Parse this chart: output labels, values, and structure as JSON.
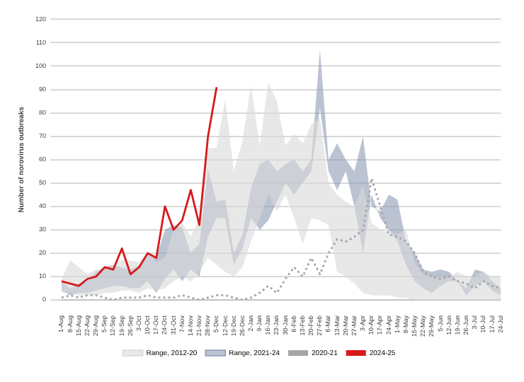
{
  "chart_data": {
    "type": "line",
    "ylabel": "Number of norovirus outbreaks",
    "categories": [
      "1-Aug",
      "8-Aug",
      "15-Aug",
      "22-Aug",
      "29-Aug",
      "5-Sep",
      "12-Sep",
      "19-Sep",
      "26-Sep",
      "3-Oct",
      "10-Oct",
      "17-Oct",
      "24-Oct",
      "31-Oct",
      "7-Nov",
      "14-Nov",
      "21-Nov",
      "28-Nov",
      "5-Dec",
      "12-Dec",
      "19-Dec",
      "26-Dec",
      "2-Jan",
      "9-Jan",
      "16-Jan",
      "23-Jan",
      "30-Jan",
      "6-Feb",
      "13-Feb",
      "20-Feb",
      "27-Feb",
      "6-Mar",
      "13-Mar",
      "20-Mar",
      "27-Mar",
      "3-Apr",
      "10-Apr",
      "17-Apr",
      "24-Apr",
      "1-May",
      "8-May",
      "15-May",
      "22-May",
      "29-May",
      "5-Jun",
      "12-Jun",
      "19-Jun",
      "26-Jun",
      "3-Jul",
      "10-Jul",
      "17-Jul",
      "24-Jul"
    ],
    "series": [
      {
        "name": "Range, 2012-20",
        "type": "line",
        "color": "#d9d9d9",
        "values": [
          null,
          null,
          null,
          null,
          null,
          null,
          null,
          null,
          null,
          null,
          null,
          null,
          null,
          null,
          null,
          null,
          null,
          null,
          null,
          null,
          null,
          null,
          null,
          null,
          null,
          null,
          null,
          null,
          null,
          null,
          null,
          null,
          null,
          null,
          null,
          null,
          null,
          null,
          null,
          null,
          null,
          null,
          null,
          null,
          null,
          null,
          null,
          null,
          null,
          null,
          null,
          null
        ],
        "lower": [
          3,
          3,
          2,
          2,
          2,
          3,
          3,
          4,
          4,
          3,
          5,
          4,
          5,
          8,
          10,
          8,
          12,
          18,
          15,
          12,
          10,
          14,
          25,
          35,
          45,
          38,
          45,
          35,
          24,
          35,
          34,
          32,
          12,
          10,
          7,
          3,
          2,
          2,
          2,
          1,
          1,
          0,
          0,
          0,
          0,
          0,
          0,
          0,
          0,
          0,
          0,
          0
        ],
        "upper": [
          9,
          17,
          14,
          11,
          13,
          13,
          15,
          17,
          17,
          16,
          21,
          16,
          18,
          30,
          33,
          27,
          35,
          65,
          65,
          86,
          55,
          68,
          92,
          66,
          93,
          85,
          66,
          71,
          67,
          75,
          78,
          50,
          45,
          42,
          40,
          49,
          33,
          30,
          29,
          28,
          30,
          16,
          11,
          10,
          10,
          10,
          12,
          10,
          10,
          12,
          10,
          10
        ]
      },
      {
        "name": "Range, 2021-24",
        "type": "line",
        "color": "#8e9bb5",
        "values": [
          null,
          null,
          null,
          null,
          null,
          null,
          null,
          null,
          null,
          null,
          null,
          null,
          null,
          null,
          null,
          null,
          null,
          null,
          null,
          null,
          null,
          null,
          null,
          null,
          null,
          null,
          null,
          null,
          null,
          null,
          null,
          null,
          null,
          null,
          null,
          null,
          null,
          null,
          null,
          null,
          null,
          null,
          null,
          null,
          null,
          null,
          null,
          null,
          null,
          null,
          null,
          null
        ],
        "lower": [
          4,
          2,
          3,
          3,
          4,
          5,
          6,
          6,
          5,
          5,
          8,
          3,
          9,
          13,
          8,
          13,
          10,
          27,
          35,
          35,
          15,
          22,
          35,
          30,
          34,
          42,
          50,
          45,
          50,
          55,
          82,
          55,
          47,
          55,
          40,
          20,
          45,
          35,
          30,
          25,
          15,
          8,
          5,
          3,
          6,
          8,
          8,
          2,
          6,
          8,
          4,
          2
        ],
        "upper": [
          8,
          5,
          7,
          8,
          12,
          14,
          15,
          14,
          13,
          15,
          20,
          18,
          30,
          32,
          31,
          20,
          24,
          56,
          42,
          43,
          20,
          28,
          48,
          58,
          60,
          55,
          58,
          60,
          55,
          60,
          107,
          60,
          67,
          60,
          55,
          70,
          40,
          38,
          45,
          43,
          25,
          20,
          13,
          12,
          13,
          12,
          8,
          5,
          13,
          12,
          8,
          5
        ]
      },
      {
        "name": "2020-21",
        "color": "#a6a6a6",
        "line_style": "dotted",
        "values": [
          1,
          2,
          1,
          2,
          2,
          1,
          0,
          1,
          1,
          1,
          2,
          1,
          1,
          1,
          2,
          1,
          0,
          1,
          2,
          2,
          1,
          0,
          1,
          3,
          6,
          3,
          9,
          14,
          10,
          18,
          11,
          20,
          26,
          25,
          27,
          30,
          52,
          40,
          28,
          27,
          25,
          20,
          12,
          10,
          9,
          10,
          8,
          7,
          5,
          8,
          6,
          5
        ]
      },
      {
        "name": "2024-25",
        "color": "#d7191c",
        "line_style": "solid",
        "values": [
          8,
          7,
          6,
          9,
          10,
          14,
          13,
          22,
          11,
          14,
          20,
          18,
          40,
          30,
          34,
          47,
          32,
          70,
          91,
          null,
          null,
          null,
          null,
          null,
          null,
          null,
          null,
          null,
          null,
          null,
          null,
          null,
          null,
          null,
          null,
          null,
          null,
          null,
          null,
          null,
          null,
          null,
          null,
          null,
          null,
          null,
          null,
          null,
          null,
          null,
          null,
          null
        ]
      }
    ],
    "ylim": [
      0,
      120
    ],
    "yticks": [
      0,
      10,
      20,
      30,
      40,
      50,
      60,
      70,
      80,
      90,
      100,
      110,
      120
    ],
    "grid": "y",
    "legend": "bottom",
    "marker": "none"
  }
}
